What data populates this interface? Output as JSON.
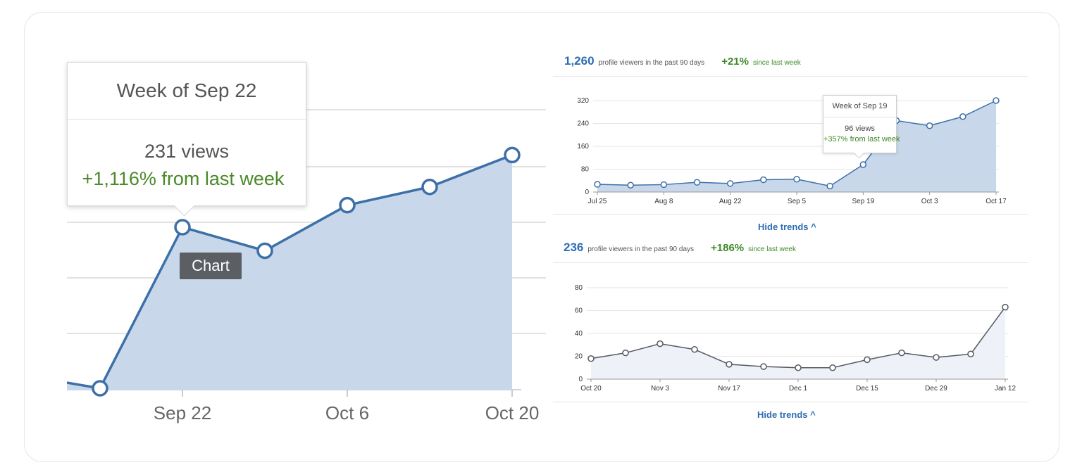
{
  "zoom": {
    "tooltip": {
      "title": "Week of Sep 22",
      "views": "231 views",
      "change": "+1,116% from last week"
    },
    "chip_label": "Chart"
  },
  "panel1": {
    "count": "1,260",
    "count_label": "profile viewers in the past 90 days",
    "change": "+21%",
    "change_label": "since last week",
    "tooltip": {
      "title": "Week of Sep 19",
      "views": "96 views",
      "change": "+357% from last week"
    },
    "hide_trends": "Hide trends ^"
  },
  "panel2": {
    "count": "236",
    "count_label": "profile viewers in the past 90 days",
    "change": "+186%",
    "change_label": "since last week",
    "hide_trends": "Hide trends ^"
  },
  "colors": {
    "line": "#3d6fa8",
    "area": "#c8d8ea",
    "green": "#3f8a2a",
    "link": "#2e6db3"
  },
  "chart_data": [
    {
      "type": "area",
      "x": [
        "",
        "Sep 22",
        "",
        "Oct 6",
        "",
        "Oct 20"
      ],
      "x_tick_labels": [
        "Sep 22",
        "Oct 6",
        "Oct 20"
      ],
      "values": [
        19,
        231,
        200,
        260,
        284,
        326
      ],
      "highlight_index": 1
    },
    {
      "type": "area",
      "x": [
        "Jul 25",
        "",
        "Aug 8",
        "",
        "Aug 22",
        "",
        "Sep 5",
        "",
        "Sep 19",
        "",
        "Oct 3",
        "",
        "Oct 17"
      ],
      "x_tick_labels": [
        "Jul 25",
        "Aug 8",
        "Aug 22",
        "Sep 5",
        "Sep 19",
        "Oct 3",
        "Oct 17"
      ],
      "values": [
        27,
        24,
        26,
        34,
        30,
        43,
        45,
        21,
        96,
        250,
        232,
        264,
        320
      ],
      "ylim": [
        0,
        320
      ],
      "y_ticks": [
        0,
        80,
        160,
        240,
        320
      ],
      "highlight_index": 8
    },
    {
      "type": "area",
      "x": [
        "Oct 20",
        "",
        "Nov 3",
        "",
        "Nov 17",
        "",
        "Dec 1",
        "",
        "Dec 15",
        "",
        "Dec 29",
        "",
        "Jan 12"
      ],
      "x_tick_labels": [
        "Oct 20",
        "Nov 3",
        "Nov 17",
        "Dec 1",
        "Dec 15",
        "Dec 29",
        "Jan 12"
      ],
      "values": [
        18,
        23,
        31,
        26,
        13,
        11,
        10,
        10,
        17,
        23,
        19,
        22,
        63
      ],
      "ylim": [
        0,
        80
      ],
      "y_ticks": [
        0,
        20,
        40,
        60,
        80
      ]
    }
  ]
}
